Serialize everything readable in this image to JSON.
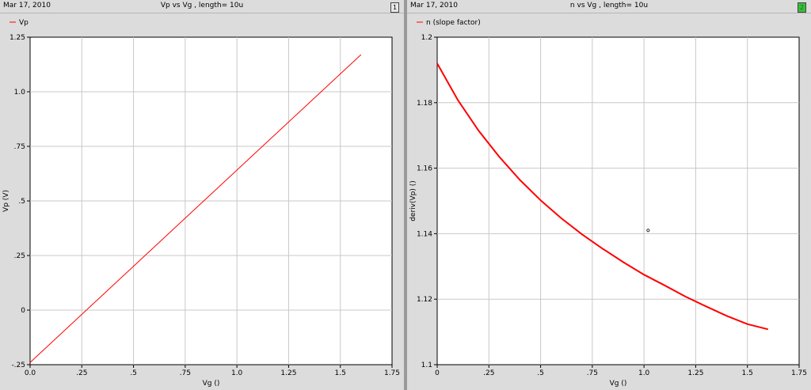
{
  "panels": [
    {
      "date": "Mar 17, 2010",
      "title": "Vp vs Vg , length=  10u",
      "window_number": "1",
      "active": false,
      "legend": "Vp",
      "line_color": "#ff0000"
    },
    {
      "date": "Mar 17, 2010",
      "title": "n vs Vg , length=  10u",
      "window_number": "2",
      "active": true,
      "legend": "n (slope factor)",
      "line_color": "#ff0000"
    }
  ],
  "chart_data": [
    {
      "type": "line",
      "xlabel": "Vg ()",
      "ylabel": "Vp (V)",
      "xlim": [
        0,
        1.75
      ],
      "ylim": [
        -0.25,
        1.25
      ],
      "xticks": [
        0,
        0.25,
        0.5,
        0.75,
        1.0,
        1.25,
        1.5,
        1.75
      ],
      "xtick_labels": [
        "0.0",
        ".25",
        ".5",
        ".75",
        "1.0",
        "1.25",
        "1.5",
        "1.75"
      ],
      "yticks": [
        -0.25,
        0,
        0.25,
        0.5,
        0.75,
        1.0,
        1.25
      ],
      "ytick_labels": [
        "-.25",
        "0",
        ".25",
        ".5",
        ".75",
        "1.0",
        "1.25"
      ],
      "grid": true,
      "legend_position": "top-left",
      "series": [
        {
          "name": "Vp",
          "x": [
            0,
            1.6
          ],
          "y": [
            -0.24,
            1.17
          ]
        }
      ]
    },
    {
      "type": "line",
      "xlabel": "Vg ()",
      "ylabel": "deriv(Vp) ()",
      "xlim": [
        0,
        1.75
      ],
      "ylim": [
        1.1,
        1.2
      ],
      "xticks": [
        0,
        0.25,
        0.5,
        0.75,
        1.0,
        1.25,
        1.5,
        1.75
      ],
      "xtick_labels": [
        "0",
        ".25",
        ".5",
        ".75",
        "1.0",
        "1.25",
        "1.5",
        "1.75"
      ],
      "yticks": [
        1.1,
        1.12,
        1.14,
        1.16,
        1.18,
        1.2
      ],
      "ytick_labels": [
        "1.1",
        "1.12",
        "1.14",
        "1.16",
        "1.18",
        "1.2"
      ],
      "grid": true,
      "legend_position": "top-left",
      "series": [
        {
          "name": "n (slope factor)",
          "x": [
            0,
            0.1,
            0.2,
            0.3,
            0.4,
            0.5,
            0.6,
            0.7,
            0.8,
            0.9,
            1.0,
            1.1,
            1.2,
            1.3,
            1.4,
            1.5,
            1.6
          ],
          "y": [
            1.192,
            1.1808,
            1.1715,
            1.1635,
            1.1564,
            1.1502,
            1.1447,
            1.1398,
            1.1354,
            1.1313,
            1.1275,
            1.1242,
            1.1208,
            1.1178,
            1.1149,
            1.1124,
            1.1108
          ]
        }
      ],
      "marker": {
        "x": 1.02,
        "y": 1.141
      }
    }
  ]
}
